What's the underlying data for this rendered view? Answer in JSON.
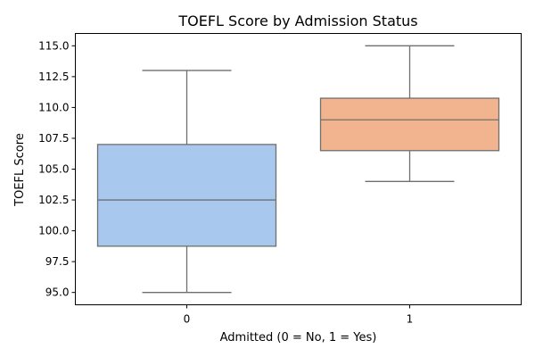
{
  "chart_data": {
    "type": "box",
    "title": "TOEFL Score by Admission Status",
    "xlabel": "Admitted (0 = No, 1 = Yes)",
    "ylabel": "TOEFL Score",
    "ylim": [
      94.0,
      116.0
    ],
    "yticks": [
      95.0,
      97.5,
      100.0,
      102.5,
      105.0,
      107.5,
      110.0,
      112.5,
      115.0
    ],
    "ytick_labels": [
      "95.0",
      "97.5",
      "100.0",
      "102.5",
      "105.0",
      "107.5",
      "110.0",
      "112.5",
      "115.0"
    ],
    "categories": [
      "0",
      "1"
    ],
    "boxes": [
      {
        "category": "0",
        "whisker_low": 95.0,
        "q1": 98.75,
        "median": 102.5,
        "q3": 107.0,
        "whisker_high": 113.0,
        "color": "#a9c8ee"
      },
      {
        "category": "1",
        "whisker_low": 104.0,
        "q1": 106.5,
        "median": 109.0,
        "q3": 110.75,
        "whisker_high": 115.0,
        "color": "#f2b48e"
      }
    ],
    "grid": false,
    "legend": "none"
  }
}
